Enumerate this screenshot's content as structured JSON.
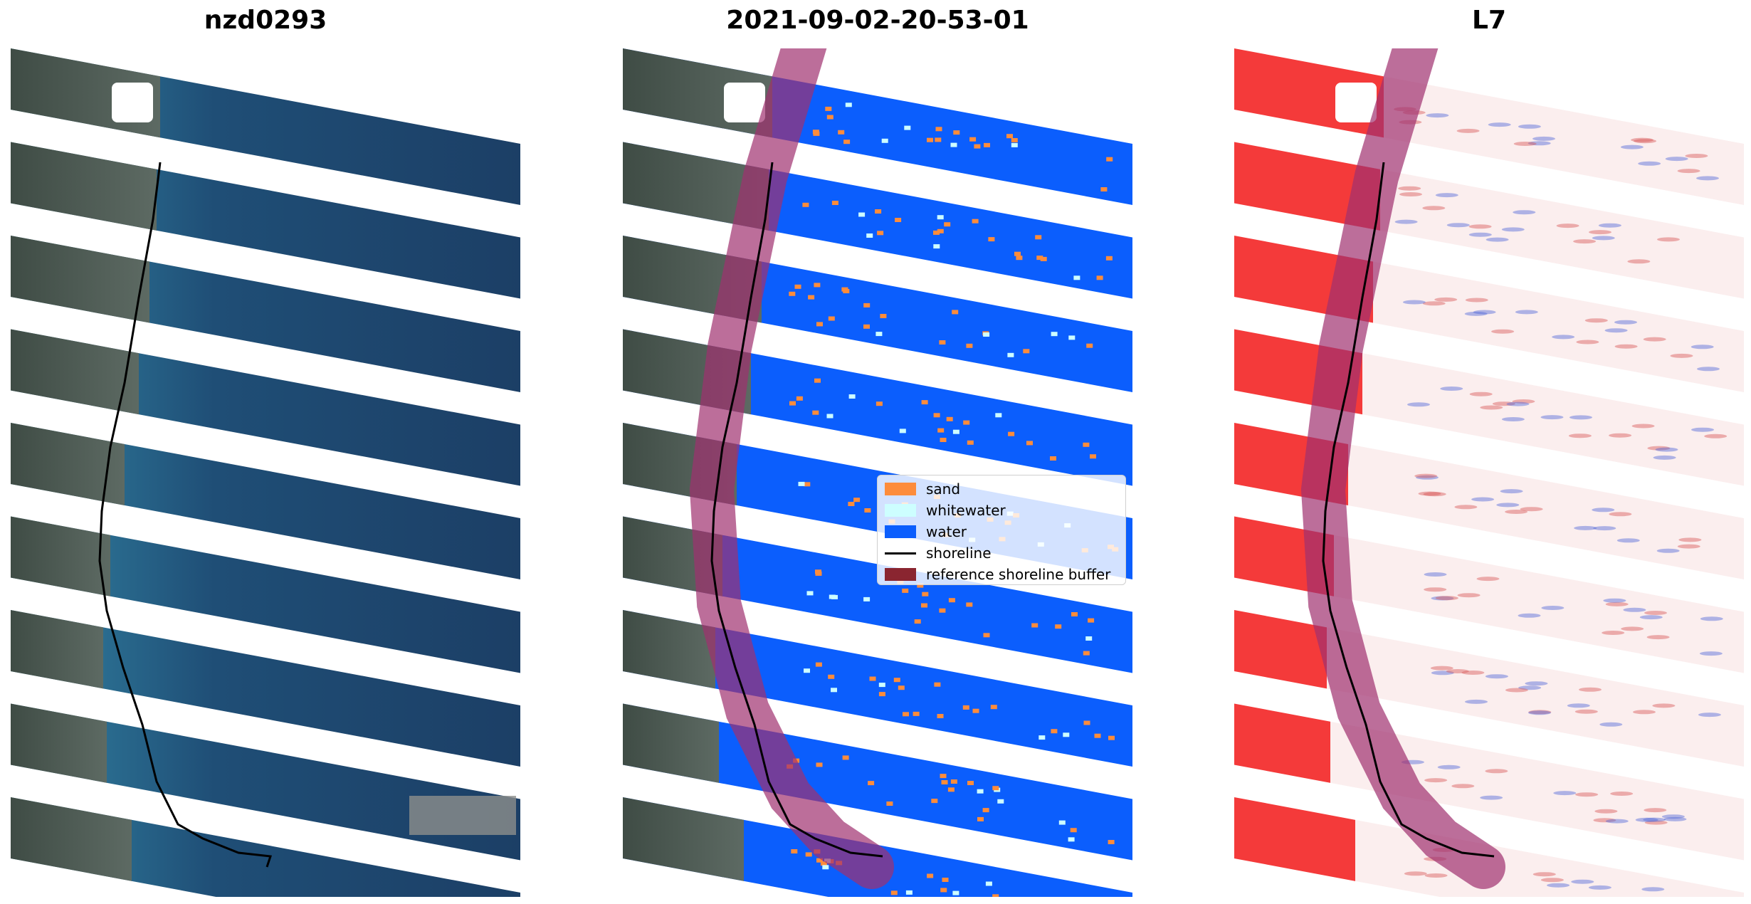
{
  "panels": [
    {
      "title": "nzd0293"
    },
    {
      "title": "2021-09-02-20-53-01"
    },
    {
      "title": "L7"
    }
  ],
  "legend": {
    "items": [
      {
        "label": "sand",
        "color": "#fd8c3b",
        "kind": "patch"
      },
      {
        "label": "whitewater",
        "color": "#cdfeff",
        "kind": "patch"
      },
      {
        "label": "water",
        "color": "#0b5efd",
        "kind": "patch"
      },
      {
        "label": "shoreline",
        "color": "#000000",
        "kind": "line"
      },
      {
        "label": "reference shoreline buffer",
        "color": "#8a2530",
        "kind": "patch"
      }
    ]
  },
  "colors": {
    "sea": "#1e4a73",
    "land": "#4b5b52",
    "water_class": "#0b5efd",
    "sand": "#fd8c3b",
    "buffer": "#a0306f",
    "index_land": "#f43a3a"
  }
}
